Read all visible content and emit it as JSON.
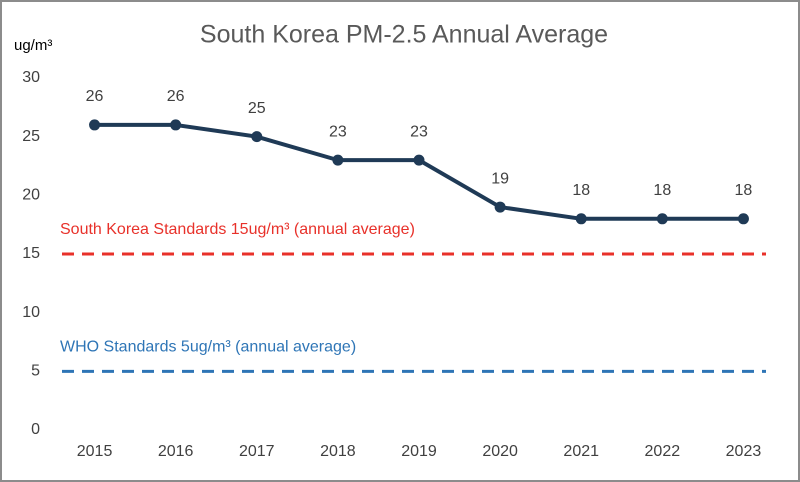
{
  "chart_data": {
    "type": "line",
    "title": "South Korea PM-2.5 Annual Average",
    "y_label": "ug/m³",
    "categories": [
      "2015",
      "2016",
      "2017",
      "2018",
      "2019",
      "2020",
      "2021",
      "2022",
      "2023"
    ],
    "values": [
      26,
      26,
      25,
      23,
      23,
      19,
      18,
      18,
      18
    ],
    "color": "#1f3a56",
    "ylim": [
      0,
      30
    ],
    "yticks": [
      0,
      5,
      10,
      15,
      20,
      25,
      30
    ],
    "grid": false,
    "reference_lines": [
      {
        "value": 15,
        "label": "South Korea Standards 15ug/m³ (annual average)",
        "color": "#e8312a"
      },
      {
        "value": 5,
        "label": "WHO Standards 5ug/m³ (annual average)",
        "color": "#2e75b6"
      }
    ]
  }
}
